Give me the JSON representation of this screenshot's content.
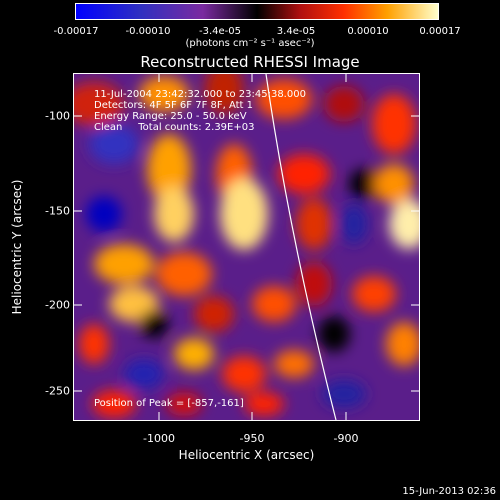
{
  "colorbar": {
    "ticks": [
      "-0.00017",
      "-0.00010",
      "-3.4e-05",
      "3.4e-05",
      "0.00010",
      "0.00017"
    ],
    "unit": "(photons cm⁻² s⁻¹ asec⁻²)"
  },
  "chart_data": {
    "type": "heatmap",
    "title": "Reconstructed RHESSI Image",
    "xlabel": "Heliocentric X (arcsec)",
    "ylabel": "Heliocentric Y (arcsec)",
    "xlim": [
      -1045,
      -860
    ],
    "ylim": [
      -270,
      -85
    ],
    "x_ticks": [
      "-1000",
      "-950",
      "-900"
    ],
    "y_ticks": [
      "-100",
      "-150",
      "-200",
      "-250"
    ],
    "color_range": [
      -0.00017,
      0.00017
    ],
    "annotations": [
      "11-Jul-2004 23:42:32.000 to 23:45:38.000",
      "Detectors: 4F 5F 6F 7F 8F, Att 1",
      "Energy Range: 25.0 - 50.0 keV",
      "Clean     Total counts: 2.39E+03"
    ],
    "peak_label": "Position of Peak = [-857,-161]",
    "limb_color": "#ffffff"
  },
  "timestamp": "15-Jun-2013 02:36"
}
